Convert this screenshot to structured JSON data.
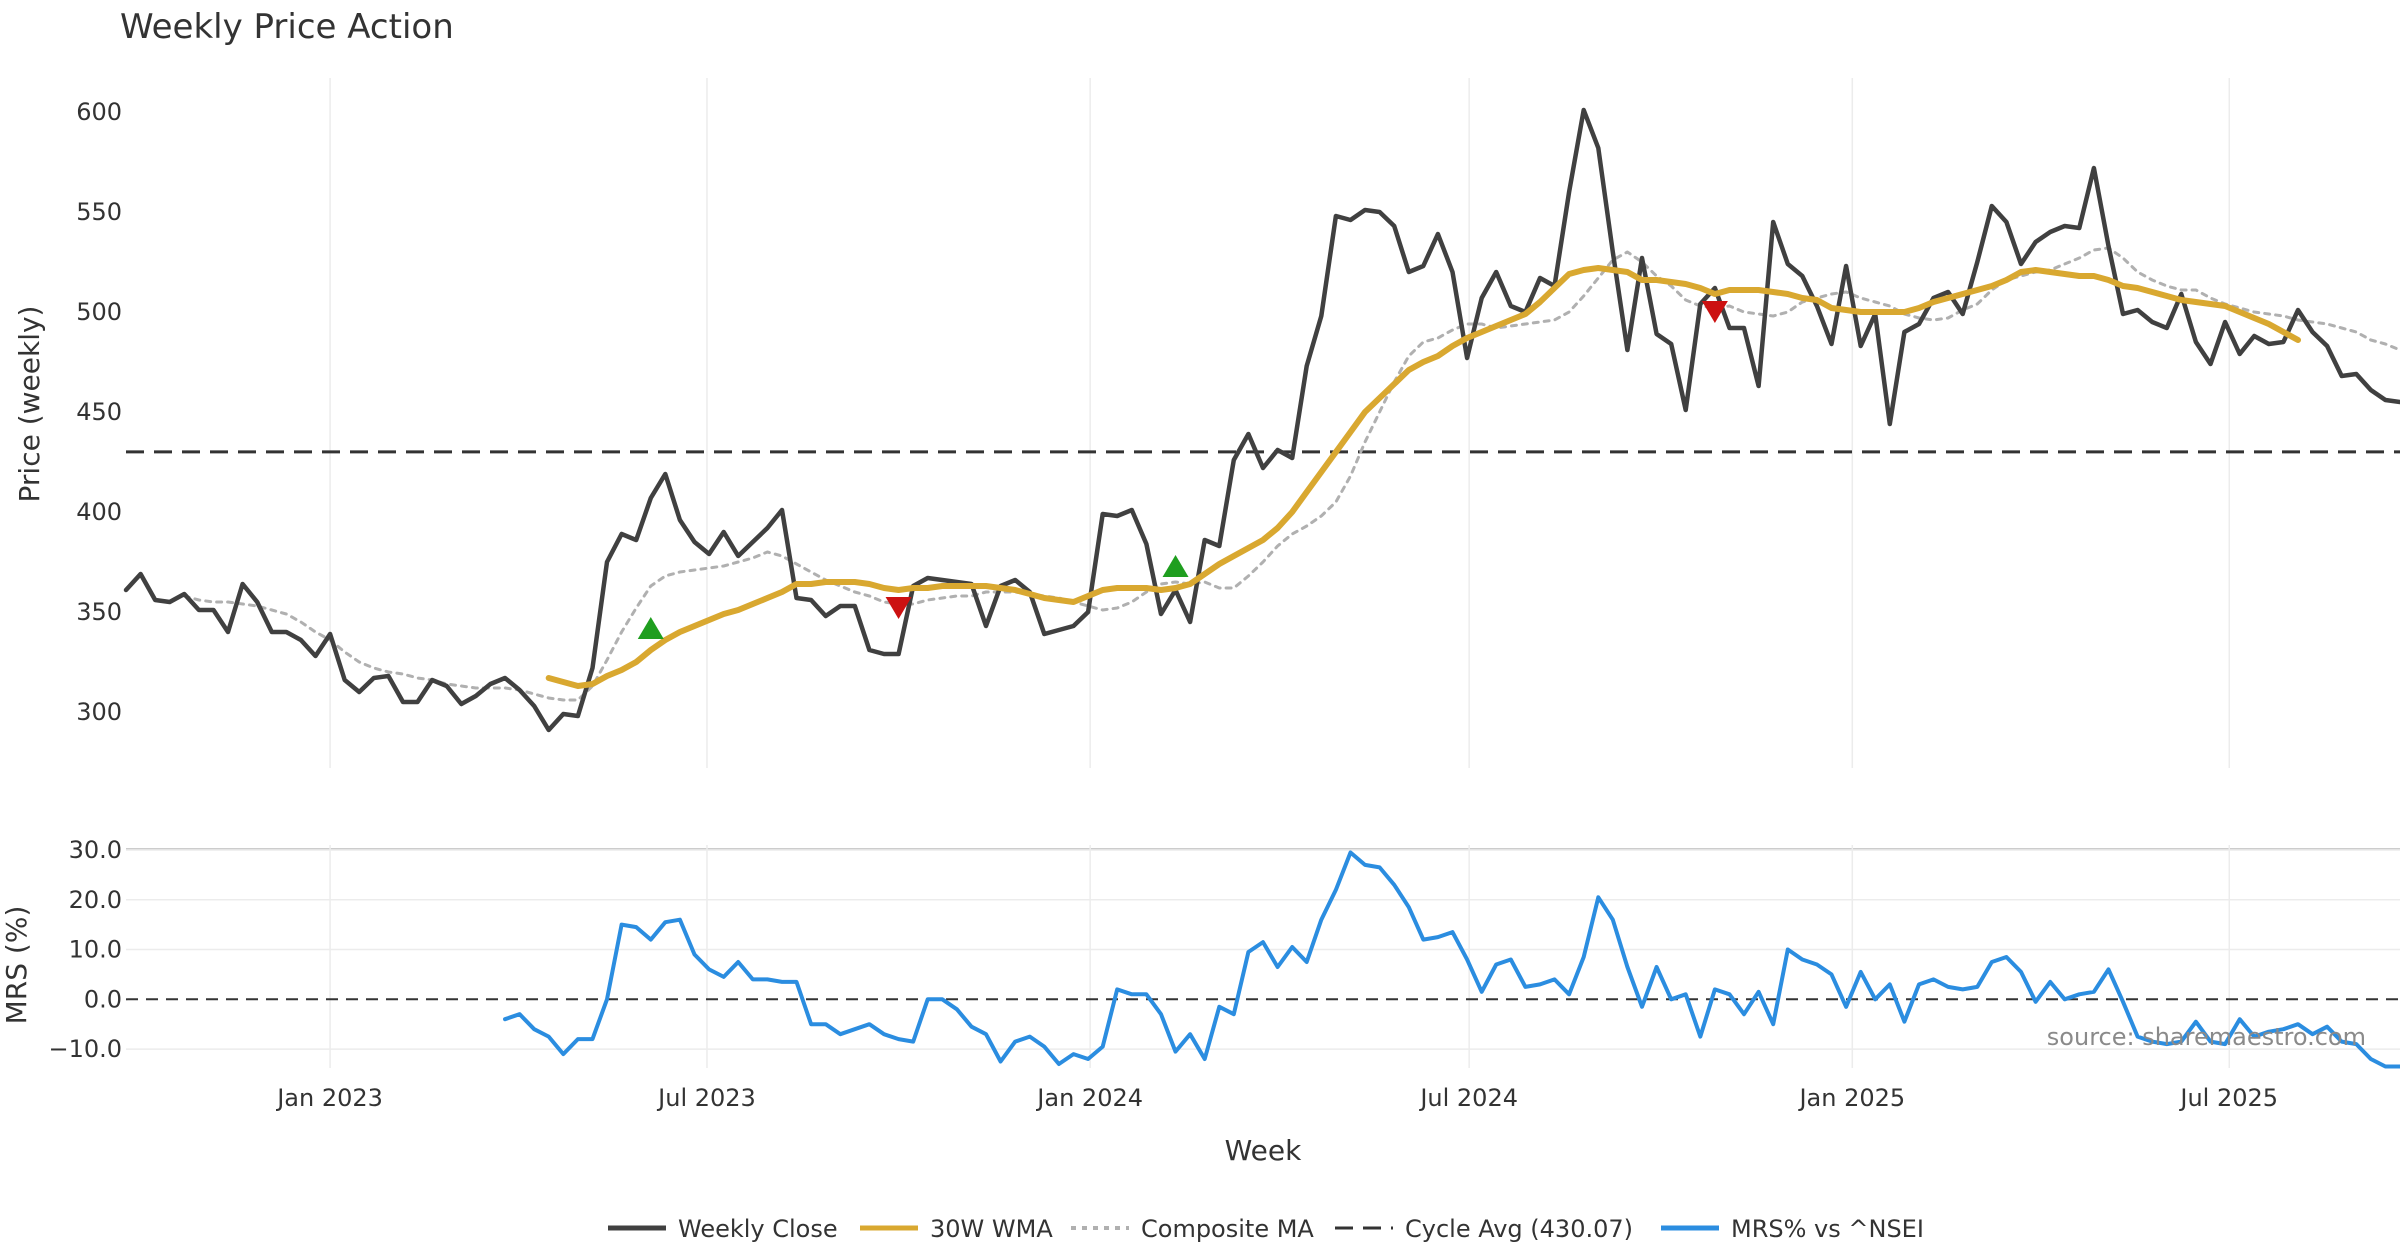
{
  "chart_data": [
    {
      "type": "line",
      "title": "Weekly Price Action",
      "ylabel": "Price (weekly)",
      "ylim": [
        272,
        617
      ],
      "yticks": [
        300,
        350,
        400,
        450,
        500,
        550,
        600
      ],
      "x_start": "2022-09-25",
      "x_step_days": 7,
      "grid": "vertical",
      "cycle_avg": 430.07,
      "series": [
        {
          "name": "Weekly Close",
          "color": "#404040",
          "values": [
            361,
            369,
            356,
            355,
            359,
            351,
            351,
            340,
            364,
            355,
            340,
            340,
            336,
            328,
            339,
            316,
            310,
            317,
            318,
            305,
            305,
            316,
            313,
            304,
            308,
            314,
            317,
            311,
            303,
            291,
            299,
            298,
            322,
            375,
            389,
            386,
            407,
            419,
            396,
            385,
            379,
            390,
            378,
            385,
            392,
            401,
            357,
            356,
            348,
            353,
            353,
            331,
            329,
            329,
            363,
            367,
            366,
            365,
            364,
            343,
            363,
            366,
            360,
            339,
            341,
            343,
            350,
            399,
            398,
            401,
            384,
            349,
            361,
            345,
            386,
            383,
            426,
            439,
            422,
            431,
            427,
            473,
            498,
            548,
            546,
            551,
            550,
            543,
            520,
            523,
            539,
            520,
            477,
            507,
            520,
            503,
            500,
            517,
            513,
            560,
            601,
            582,
            530,
            481,
            527,
            489,
            484,
            451,
            504,
            512,
            492,
            492,
            463,
            545,
            524,
            518,
            503,
            484,
            523,
            483,
            499,
            444,
            490,
            494,
            507,
            510,
            499,
            525,
            553,
            545,
            524,
            535,
            540,
            543,
            542,
            572,
            533,
            499,
            501,
            495,
            492,
            509,
            485,
            474,
            495,
            479,
            488,
            484,
            485,
            501,
            490,
            483,
            468,
            469,
            461,
            456,
            455
          ]
        },
        {
          "name": "30W WMA",
          "color": "#d9a830",
          "start_index": 29,
          "values": [
            317,
            315,
            313,
            314,
            318,
            321,
            325,
            331,
            336,
            340,
            343,
            346,
            349,
            351,
            354,
            357,
            360,
            364,
            364,
            365,
            365,
            365,
            364,
            362,
            361,
            362,
            362,
            363,
            363,
            363,
            363,
            362,
            361,
            359,
            357,
            356,
            355,
            358,
            361,
            362,
            362,
            362,
            361,
            362,
            364,
            369,
            374,
            378,
            382,
            386,
            392,
            400,
            410,
            420,
            430,
            440,
            450,
            457,
            464,
            471,
            475,
            478,
            483,
            487,
            490,
            493,
            496,
            499,
            505,
            512,
            519,
            521,
            522,
            521,
            520,
            516,
            516,
            515,
            514,
            512,
            509,
            511,
            511,
            511,
            510,
            509,
            507,
            506,
            502,
            501,
            500,
            500,
            500,
            500,
            502,
            505,
            507,
            509,
            511,
            513,
            516,
            520,
            521,
            520,
            519,
            518,
            518,
            516,
            513,
            512,
            510,
            508,
            506,
            505,
            504,
            503,
            500,
            497,
            494,
            490,
            486
          ]
        },
        {
          "name": "Composite MA",
          "color": "#b0b0b0",
          "start_index": 4,
          "values": [
            358,
            356,
            355,
            355,
            354,
            353,
            351,
            349,
            345,
            340,
            336,
            330,
            325,
            322,
            320,
            319,
            317,
            316,
            314,
            313,
            312,
            312,
            312,
            311,
            309,
            307,
            306,
            306,
            313,
            326,
            340,
            352,
            363,
            368,
            370,
            371,
            372,
            373,
            375,
            377,
            380,
            378,
            374,
            370,
            366,
            363,
            360,
            358,
            355,
            354,
            354,
            356,
            357,
            358,
            358,
            360,
            360,
            360,
            359,
            358,
            357,
            355,
            353,
            351,
            352,
            355,
            360,
            364,
            365,
            364,
            365,
            362,
            362,
            368,
            375,
            383,
            389,
            393,
            398,
            405,
            418,
            435,
            450,
            465,
            478,
            485,
            487,
            491,
            494,
            494,
            492,
            493,
            494,
            495,
            496,
            500,
            508,
            517,
            526,
            530,
            525,
            518,
            513,
            506,
            503,
            502,
            503,
            500,
            499,
            498,
            500,
            505,
            507,
            509,
            510,
            507,
            505,
            503,
            499,
            497,
            496,
            497,
            501,
            504,
            511,
            516,
            518,
            520,
            521,
            524,
            527,
            531,
            532,
            527,
            520,
            516,
            513,
            511,
            511,
            507,
            504,
            502,
            500,
            499,
            498,
            496,
            495,
            494,
            492,
            490,
            486,
            484,
            481,
            478
          ]
        },
        {
          "name": "Cycle Avg (430.07)",
          "color": "#333333",
          "values": [
            430.07
          ]
        }
      ],
      "annotations": [
        {
          "type": "buy",
          "marker": "triangle-up",
          "color": "#1f9e1f",
          "x_index": 36,
          "y": 342
        },
        {
          "type": "buy",
          "marker": "triangle-up",
          "color": "#1f9e1f",
          "x_index": 72,
          "y": 373
        },
        {
          "type": "sell",
          "marker": "triangle-down",
          "color": "#cc1111",
          "x_index": 53,
          "y": 352
        },
        {
          "type": "sell",
          "marker": "triangle-down",
          "color": "#cc1111",
          "x_index": 109,
          "y": 500
        }
      ]
    },
    {
      "type": "line",
      "xlabel": "Week",
      "ylabel": "MRS (%)",
      "ylim": [
        -13.8,
        31
      ],
      "yticks": [
        30.0,
        20.0,
        10.0,
        0.0,
        -10.0
      ],
      "ytick_labels": [
        "30.0",
        "20.0",
        "10.0",
        "0.0",
        "−10.0"
      ],
      "xticks": [
        "Jan 2023",
        "Jul 2023",
        "Jan 2024",
        "Jul 2024",
        "Jan 2025",
        "Jul 2025"
      ],
      "xtick_dates": [
        "2023-01-01",
        "2023-07-01",
        "2024-01-01",
        "2024-07-01",
        "2025-01-01",
        "2025-07-01"
      ],
      "grid": "both",
      "series": [
        {
          "name": "MRS% vs ^NSEI",
          "color": "#2b8de0",
          "start_index": 26,
          "values": [
            -4,
            -3,
            -6,
            -7.5,
            -11,
            -8,
            -8,
            0,
            15,
            14.5,
            12,
            15.5,
            16,
            9,
            6,
            4.5,
            7.5,
            4,
            4,
            3.5,
            3.5,
            -5,
            -5,
            -7,
            -6,
            -5,
            -7,
            -8,
            -8.5,
            0,
            0,
            -2,
            -5.5,
            -7,
            -12.5,
            -8.5,
            -7.5,
            -9.5,
            -13,
            -11,
            -12,
            -9.5,
            2,
            1,
            1,
            -3,
            -10.5,
            -7,
            -12,
            -1.5,
            -3,
            9.5,
            11.5,
            6.5,
            10.5,
            7.5,
            16,
            22,
            29.5,
            27,
            26.5,
            23,
            18.5,
            12,
            12.5,
            13.5,
            8,
            1.5,
            7,
            8,
            2.5,
            3,
            4,
            1,
            8.5,
            20.5,
            16,
            6.5,
            -1.5,
            6.5,
            0,
            1,
            -7.5,
            2,
            1,
            -3,
            1.5,
            -5,
            10,
            8,
            7,
            5,
            -1.5,
            5.5,
            0,
            3,
            -4.5,
            3,
            4,
            2.5,
            2,
            2.5,
            7.5,
            8.5,
            5.5,
            -0.5,
            3.5,
            0,
            1,
            1.5,
            6,
            -0.5,
            -7.5,
            -8.5,
            -9,
            -8.5,
            -4.5,
            -8.5,
            -9,
            -4,
            -7.5,
            -6.5,
            -6,
            -5,
            -7,
            -5.5,
            -8.5,
            -9,
            -12,
            -13.5,
            -13.5
          ]
        },
        {
          "name": "zero",
          "values": [
            0
          ]
        }
      ]
    }
  ],
  "legend": [
    {
      "label": "Weekly Close",
      "style": "solid",
      "color": "#404040"
    },
    {
      "label": "30W WMA",
      "style": "solid",
      "color": "#d9a830"
    },
    {
      "label": "Composite MA",
      "style": "dotted",
      "color": "#b0b0b0"
    },
    {
      "label": "Cycle Avg (430.07)",
      "style": "dashed",
      "color": "#333333"
    },
    {
      "label": "MRS% vs ^NSEI",
      "style": "solid",
      "color": "#2b8de0"
    }
  ],
  "source": "source: sharemaestro.com"
}
